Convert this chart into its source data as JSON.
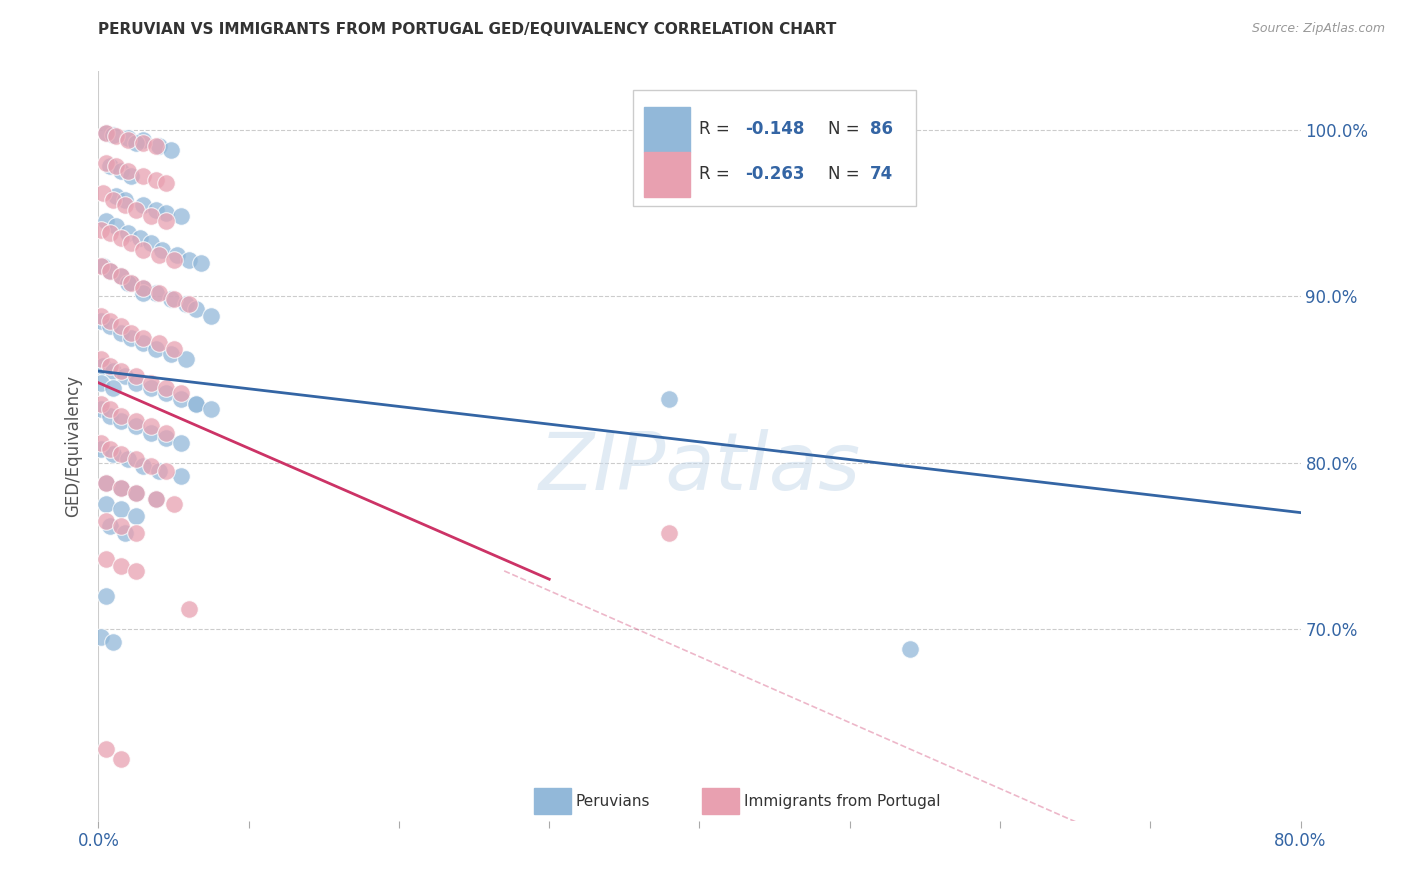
{
  "title": "PERUVIAN VS IMMIGRANTS FROM PORTUGAL GED/EQUIVALENCY CORRELATION CHART",
  "source": "Source: ZipAtlas.com",
  "ylabel": "GED/Equivalency",
  "yticks": [
    "100.0%",
    "90.0%",
    "80.0%",
    "70.0%"
  ],
  "ytick_values": [
    1.0,
    0.9,
    0.8,
    0.7
  ],
  "xlim": [
    0.0,
    0.8
  ],
  "ylim": [
    0.585,
    1.035
  ],
  "xtick_positions": [
    0.0,
    0.1,
    0.2,
    0.3,
    0.4,
    0.5,
    0.6,
    0.7,
    0.8
  ],
  "xtick_labels": [
    "0.0%",
    "",
    "",
    "",
    "",
    "",
    "",
    "",
    "80.0%"
  ],
  "legend_label1": "Peruvians",
  "legend_label2": "Immigrants from Portugal",
  "color_blue": "#92b8d9",
  "color_pink": "#e8a0b0",
  "color_blue_line": "#3465a4",
  "color_pink_line": "#cc3366",
  "watermark": "ZIPatlas",
  "blue_points": [
    [
      0.005,
      0.998
    ],
    [
      0.01,
      0.997
    ],
    [
      0.02,
      0.995
    ],
    [
      0.03,
      0.994
    ],
    [
      0.025,
      0.992
    ],
    [
      0.04,
      0.99
    ],
    [
      0.048,
      0.988
    ],
    [
      0.008,
      0.978
    ],
    [
      0.015,
      0.975
    ],
    [
      0.022,
      0.972
    ],
    [
      0.012,
      0.96
    ],
    [
      0.018,
      0.958
    ],
    [
      0.03,
      0.955
    ],
    [
      0.038,
      0.952
    ],
    [
      0.045,
      0.95
    ],
    [
      0.055,
      0.948
    ],
    [
      0.005,
      0.945
    ],
    [
      0.012,
      0.942
    ],
    [
      0.02,
      0.938
    ],
    [
      0.028,
      0.935
    ],
    [
      0.035,
      0.932
    ],
    [
      0.042,
      0.928
    ],
    [
      0.052,
      0.925
    ],
    [
      0.06,
      0.922
    ],
    [
      0.068,
      0.92
    ],
    [
      0.003,
      0.918
    ],
    [
      0.008,
      0.915
    ],
    [
      0.015,
      0.912
    ],
    [
      0.022,
      0.908
    ],
    [
      0.03,
      0.905
    ],
    [
      0.038,
      0.902
    ],
    [
      0.048,
      0.898
    ],
    [
      0.058,
      0.895
    ],
    [
      0.065,
      0.892
    ],
    [
      0.075,
      0.888
    ],
    [
      0.002,
      0.885
    ],
    [
      0.008,
      0.882
    ],
    [
      0.015,
      0.878
    ],
    [
      0.022,
      0.875
    ],
    [
      0.03,
      0.872
    ],
    [
      0.038,
      0.868
    ],
    [
      0.048,
      0.865
    ],
    [
      0.058,
      0.862
    ],
    [
      0.003,
      0.858
    ],
    [
      0.01,
      0.855
    ],
    [
      0.018,
      0.852
    ],
    [
      0.025,
      0.848
    ],
    [
      0.035,
      0.845
    ],
    [
      0.045,
      0.842
    ],
    [
      0.055,
      0.838
    ],
    [
      0.065,
      0.835
    ],
    [
      0.002,
      0.832
    ],
    [
      0.008,
      0.828
    ],
    [
      0.015,
      0.825
    ],
    [
      0.025,
      0.822
    ],
    [
      0.035,
      0.818
    ],
    [
      0.045,
      0.815
    ],
    [
      0.055,
      0.812
    ],
    [
      0.002,
      0.808
    ],
    [
      0.01,
      0.805
    ],
    [
      0.02,
      0.802
    ],
    [
      0.03,
      0.798
    ],
    [
      0.04,
      0.795
    ],
    [
      0.055,
      0.792
    ],
    [
      0.005,
      0.788
    ],
    [
      0.015,
      0.785
    ],
    [
      0.025,
      0.782
    ],
    [
      0.038,
      0.778
    ],
    [
      0.005,
      0.775
    ],
    [
      0.015,
      0.772
    ],
    [
      0.025,
      0.768
    ],
    [
      0.008,
      0.762
    ],
    [
      0.018,
      0.758
    ],
    [
      0.005,
      0.72
    ],
    [
      0.38,
      0.838
    ],
    [
      0.54,
      0.688
    ],
    [
      0.002,
      0.695
    ],
    [
      0.01,
      0.692
    ],
    [
      0.065,
      0.835
    ],
    [
      0.075,
      0.832
    ],
    [
      0.002,
      0.848
    ],
    [
      0.01,
      0.845
    ],
    [
      0.02,
      0.908
    ],
    [
      0.03,
      0.902
    ]
  ],
  "pink_points": [
    [
      0.005,
      0.998
    ],
    [
      0.012,
      0.996
    ],
    [
      0.02,
      0.994
    ],
    [
      0.03,
      0.992
    ],
    [
      0.038,
      0.99
    ],
    [
      0.005,
      0.98
    ],
    [
      0.012,
      0.978
    ],
    [
      0.02,
      0.975
    ],
    [
      0.03,
      0.972
    ],
    [
      0.038,
      0.97
    ],
    [
      0.045,
      0.968
    ],
    [
      0.003,
      0.962
    ],
    [
      0.01,
      0.958
    ],
    [
      0.018,
      0.955
    ],
    [
      0.025,
      0.952
    ],
    [
      0.035,
      0.948
    ],
    [
      0.045,
      0.945
    ],
    [
      0.002,
      0.94
    ],
    [
      0.008,
      0.938
    ],
    [
      0.015,
      0.935
    ],
    [
      0.022,
      0.932
    ],
    [
      0.03,
      0.928
    ],
    [
      0.04,
      0.925
    ],
    [
      0.05,
      0.922
    ],
    [
      0.002,
      0.918
    ],
    [
      0.008,
      0.915
    ],
    [
      0.015,
      0.912
    ],
    [
      0.022,
      0.908
    ],
    [
      0.03,
      0.905
    ],
    [
      0.04,
      0.902
    ],
    [
      0.05,
      0.898
    ],
    [
      0.06,
      0.895
    ],
    [
      0.002,
      0.888
    ],
    [
      0.008,
      0.885
    ],
    [
      0.015,
      0.882
    ],
    [
      0.022,
      0.878
    ],
    [
      0.03,
      0.875
    ],
    [
      0.04,
      0.872
    ],
    [
      0.05,
      0.868
    ],
    [
      0.002,
      0.862
    ],
    [
      0.008,
      0.858
    ],
    [
      0.015,
      0.855
    ],
    [
      0.025,
      0.852
    ],
    [
      0.035,
      0.848
    ],
    [
      0.045,
      0.845
    ],
    [
      0.055,
      0.842
    ],
    [
      0.002,
      0.835
    ],
    [
      0.008,
      0.832
    ],
    [
      0.015,
      0.828
    ],
    [
      0.025,
      0.825
    ],
    [
      0.035,
      0.822
    ],
    [
      0.045,
      0.818
    ],
    [
      0.002,
      0.812
    ],
    [
      0.008,
      0.808
    ],
    [
      0.015,
      0.805
    ],
    [
      0.025,
      0.802
    ],
    [
      0.035,
      0.798
    ],
    [
      0.045,
      0.795
    ],
    [
      0.005,
      0.788
    ],
    [
      0.015,
      0.785
    ],
    [
      0.025,
      0.782
    ],
    [
      0.038,
      0.778
    ],
    [
      0.05,
      0.775
    ],
    [
      0.005,
      0.765
    ],
    [
      0.015,
      0.762
    ],
    [
      0.025,
      0.758
    ],
    [
      0.005,
      0.742
    ],
    [
      0.015,
      0.738
    ],
    [
      0.025,
      0.735
    ],
    [
      0.005,
      0.628
    ],
    [
      0.015,
      0.622
    ],
    [
      0.38,
      0.758
    ],
    [
      0.06,
      0.712
    ]
  ],
  "blue_line_x": [
    0.0,
    0.8
  ],
  "blue_line_y": [
    0.855,
    0.77
  ],
  "pink_line_x": [
    0.0,
    0.3
  ],
  "pink_line_y": [
    0.848,
    0.73
  ],
  "dashed_line_x": [
    0.27,
    0.8
  ],
  "dashed_line_y": [
    0.735,
    0.525
  ]
}
